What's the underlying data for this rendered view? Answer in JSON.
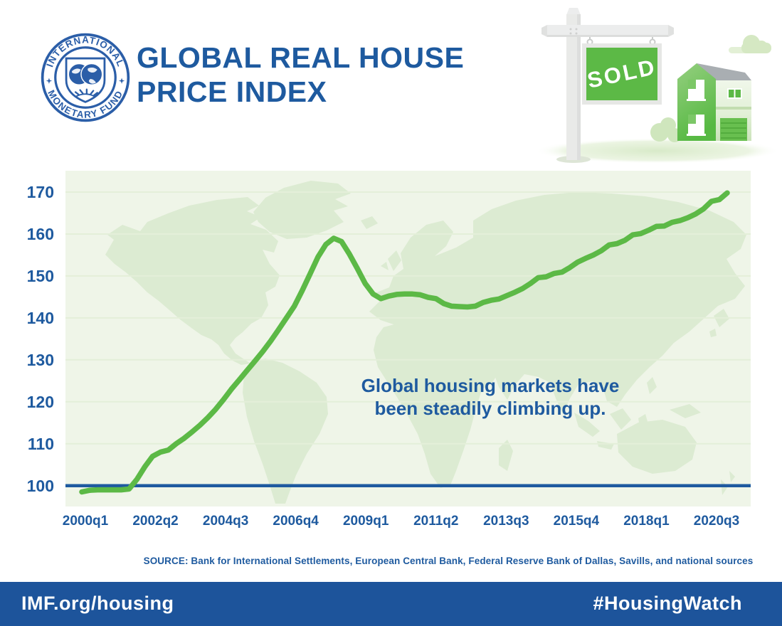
{
  "header": {
    "title_line1": "GLOBAL REAL HOUSE",
    "title_line2": "PRICE INDEX",
    "logo": {
      "top_text": "INTERNATIONAL",
      "bottom_text": "MONETARY FUND"
    }
  },
  "illustration": {
    "sign_text": "SOLD"
  },
  "chart_data": {
    "type": "line",
    "title": "Global Real House Price Index",
    "frequency": "quarterly",
    "x_start": "2000q1",
    "x_end": "2020q3",
    "xticks": [
      "2000q1",
      "2002q2",
      "2004q3",
      "2006q4",
      "2009q1",
      "2011q2",
      "2013q3",
      "2015q4",
      "2018q1",
      "2020q3"
    ],
    "yticks": [
      "170",
      "160",
      "150",
      "140",
      "130",
      "120",
      "110",
      "100"
    ],
    "ylim": [
      95,
      175
    ],
    "baseline": 100,
    "grid": "horizontal",
    "values": [
      98.5,
      98.9,
      99.0,
      99.0,
      99.0,
      99.0,
      99.2,
      101.5,
      104.5,
      107.0,
      108.0,
      108.5,
      110.0,
      111.3,
      112.8,
      114.4,
      116.2,
      118.2,
      120.5,
      123.0,
      125.2,
      127.5,
      129.7,
      132.0,
      134.5,
      137.2,
      140.0,
      142.8,
      146.5,
      150.5,
      154.5,
      157.5,
      159.0,
      158.2,
      155.2,
      151.8,
      148.2,
      145.7,
      144.6,
      145.2,
      145.6,
      145.7,
      145.7,
      145.5,
      144.9,
      144.6,
      143.4,
      142.8,
      142.7,
      142.6,
      142.8,
      143.7,
      144.2,
      144.5,
      145.3,
      146.1,
      147.0,
      148.2,
      149.6,
      149.8,
      150.6,
      150.9,
      152.0,
      153.3,
      154.2,
      155.0,
      156.0,
      157.4,
      157.7,
      158.5,
      159.8,
      160.1,
      160.9,
      161.8,
      161.9,
      162.8,
      163.2,
      163.9,
      164.8,
      166.0,
      167.8,
      168.2,
      169.8
    ],
    "annotation_line1": "Global housing markets have",
    "annotation_line2": "been steadily climbing up.",
    "line_color": "#5cb946",
    "baseline_color": "#1e5a9f",
    "plot_bg": "#eff5e8",
    "map_color": "#dcebd2",
    "grid_color": "#e4efd9",
    "label_color": "#1e5a9f"
  },
  "source": "SOURCE: Bank for International Settlements, European Central Bank, Federal Reserve Bank of Dallas, Savills, and national sources",
  "footer": {
    "left": "IMF.org/housing",
    "right": "#HousingWatch",
    "bg": "#1d549b"
  }
}
